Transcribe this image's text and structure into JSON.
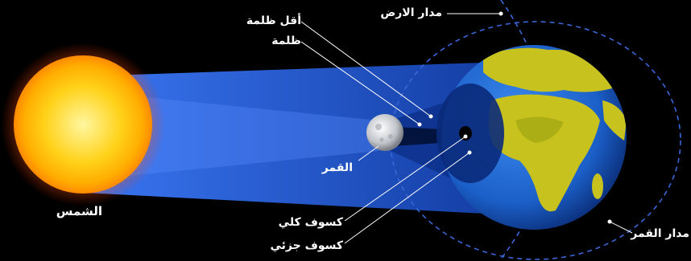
{
  "labels": {
    "earth_orbit": "مدار الارض",
    "penumbra": "أقل ظلمة",
    "umbra": "ظلمة",
    "moon": "القمر",
    "sun": "الشمس",
    "total_eclipse": "كسوف كلي",
    "partial_eclipse": "كسوف جزئي",
    "moon_orbit": "مدار القمر"
  },
  "colors": {
    "background": "#000000",
    "sun_core": "#ffd21a",
    "sun_glow": "#ff8a00",
    "light_cone": "#1c4fd6",
    "earth_ocean": "#1a5fc9",
    "earth_land": "#c8c21e",
    "orbit_line": "#3a66d8",
    "leader_line": "#ffffff"
  }
}
